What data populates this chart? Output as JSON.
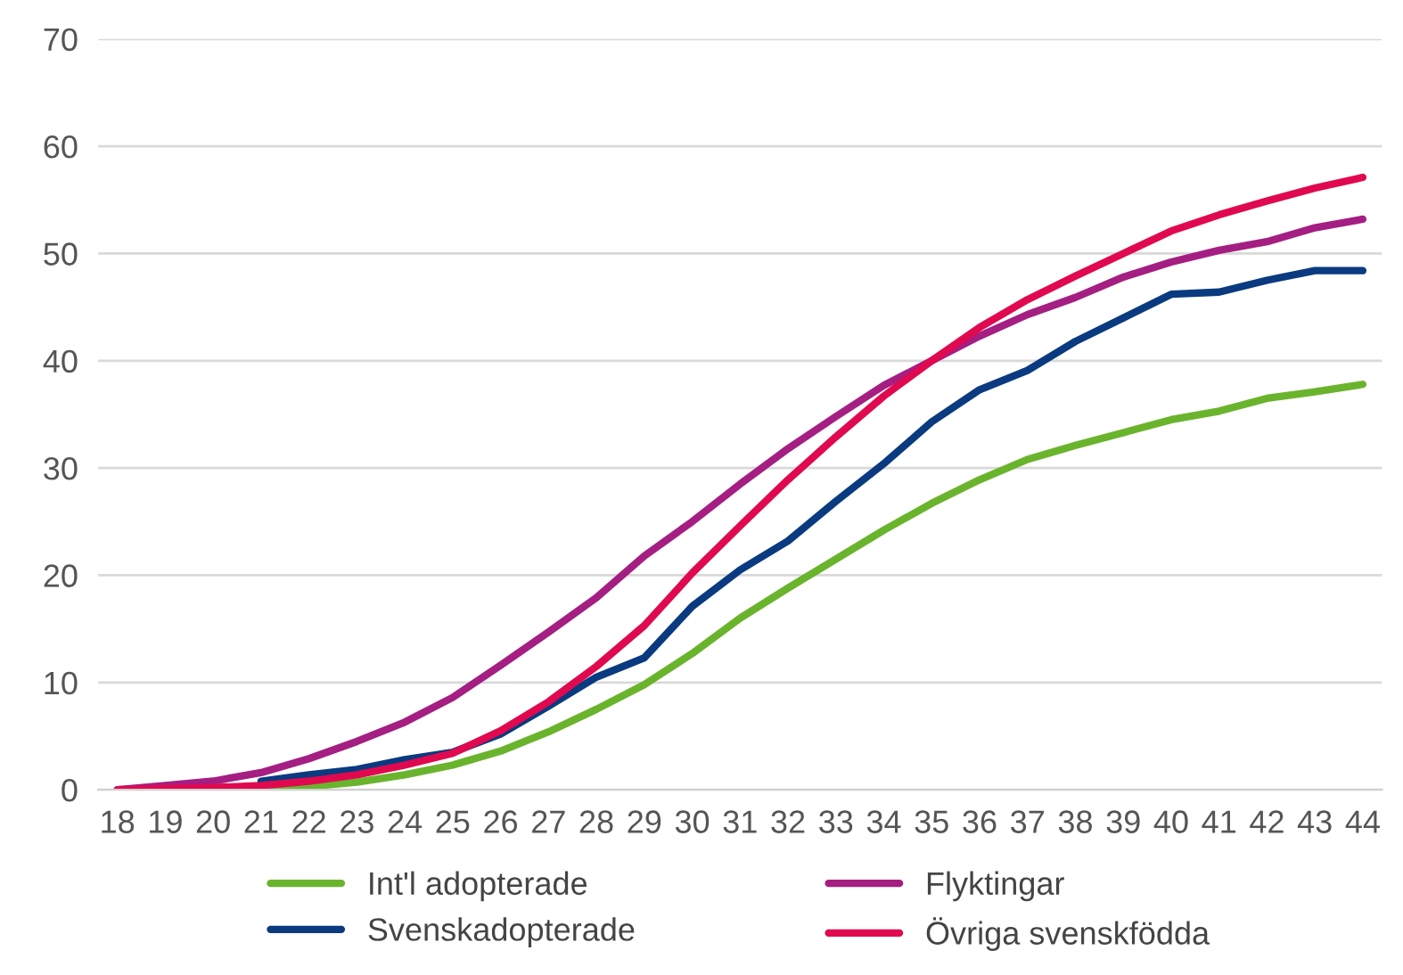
{
  "chart_data": {
    "type": "line",
    "categories": [
      "18",
      "19",
      "20",
      "21",
      "22",
      "23",
      "24",
      "25",
      "26",
      "27",
      "28",
      "29",
      "30",
      "31",
      "32",
      "33",
      "34",
      "35",
      "36",
      "37",
      "38",
      "39",
      "40",
      "41",
      "42",
      "43",
      "44"
    ],
    "series": [
      {
        "name": "Int'l adopterade",
        "color": "#6ab42d",
        "values": [
          null,
          null,
          0,
          0.1,
          0.3,
          0.7,
          1.4,
          2.3,
          3.6,
          5.4,
          7.5,
          9.8,
          12.7,
          16,
          18.8,
          21.5,
          24.2,
          26.7,
          28.9,
          30.8,
          32.1,
          33.3,
          34.5,
          35.3,
          36.5,
          37.1,
          37.8
        ]
      },
      {
        "name": "Flyktingar",
        "color": "#a51e82",
        "values": [
          0,
          0.4,
          0.8,
          1.6,
          2.9,
          4.5,
          6.3,
          8.6,
          11.6,
          14.7,
          17.9,
          21.8,
          25,
          28.5,
          31.8,
          34.8,
          37.7,
          40,
          42.3,
          44.3,
          45.9,
          47.8,
          49.2,
          50.3,
          51.1,
          52.4,
          53.2
        ]
      },
      {
        "name": "Svenskadopterade",
        "color": "#0a3a7f",
        "values": [
          null,
          null,
          null,
          0.8,
          1.4,
          1.9,
          2.8,
          3.5,
          5.2,
          7.8,
          10.5,
          12.3,
          17.1,
          20.5,
          23.2,
          26.9,
          30.4,
          34.3,
          37.3,
          39.1,
          41.8,
          44,
          46.2,
          46.4,
          47.5,
          48.4,
          48.4
        ]
      },
      {
        "name": "Övriga svenskfödda",
        "color": "#e0094f",
        "values": [
          0,
          0.1,
          0.2,
          0.4,
          0.8,
          1.4,
          2.3,
          3.4,
          5.5,
          8.2,
          11.5,
          15.3,
          20.2,
          24.6,
          28.9,
          32.9,
          36.7,
          40,
          43.1,
          45.7,
          47.9,
          50,
          52.1,
          53.6,
          54.9,
          56.1,
          57.1
        ]
      }
    ],
    "ylim": [
      0,
      70
    ],
    "yticks": [
      0,
      10,
      20,
      30,
      40,
      50,
      60,
      70
    ],
    "grid": "y",
    "legend": "bottom",
    "marker": "none",
    "line_style": "solid"
  }
}
